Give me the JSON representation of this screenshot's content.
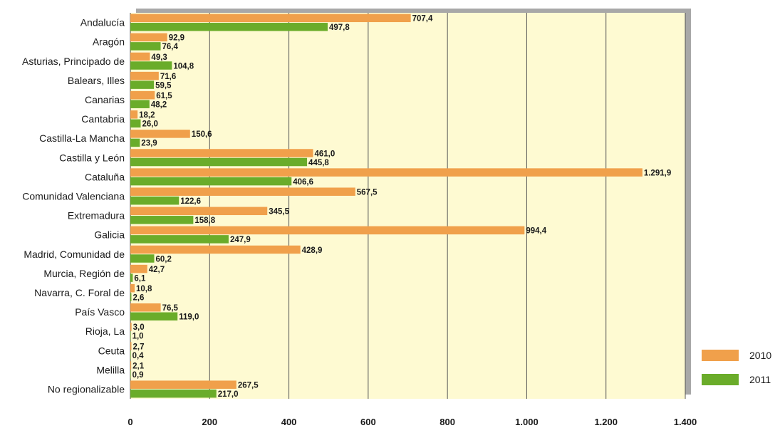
{
  "chart_data": {
    "type": "bar",
    "orientation": "horizontal",
    "categories": [
      "Andalucía",
      "Aragón",
      "Asturias, Principado de",
      "Balears, Illes",
      "Canarias",
      "Cantabria",
      "Castilla-La Mancha",
      "Castilla y León",
      "Cataluña",
      "Comunidad Valenciana",
      "Extremadura",
      "Galicia",
      "Madrid, Comunidad de",
      "Murcia, Región de",
      "Navarra, C. Foral de",
      "País Vasco",
      "Rioja, La",
      "Ceuta",
      "Melilla",
      "No regionalizable"
    ],
    "series": [
      {
        "name": "2010",
        "color": "#f0a04b",
        "values": [
          707.4,
          92.9,
          49.3,
          71.6,
          61.5,
          18.2,
          150.6,
          461.0,
          1291.9,
          567.5,
          345.5,
          994.4,
          428.9,
          42.7,
          10.8,
          76.5,
          3.0,
          2.7,
          2.1,
          267.5
        ],
        "labels": [
          "707,4",
          "92,9",
          "49,3",
          "71,6",
          "61,5",
          "18,2",
          "150,6",
          "461,0",
          "1.291,9",
          "567,5",
          "345,5",
          "994,4",
          "428,9",
          "42,7",
          "10,8",
          "76,5",
          "3,0",
          "2,7",
          "2,1",
          "267,5"
        ]
      },
      {
        "name": "2011",
        "color": "#6aac2a",
        "values": [
          497.8,
          76.4,
          104.8,
          59.5,
          48.2,
          26.0,
          23.9,
          445.8,
          406.6,
          122.6,
          158.8,
          247.9,
          60.2,
          6.1,
          2.6,
          119.0,
          1.0,
          0.4,
          0.9,
          217.0
        ],
        "labels": [
          "497,8",
          "76,4",
          "104,8",
          "59,5",
          "48,2",
          "26,0",
          "23,9",
          "445,8",
          "406,6",
          "122,6",
          "158,8",
          "247,9",
          "60,2",
          "6,1",
          "2,6",
          "119,0",
          "1,0",
          "0,4",
          "0,9",
          "217,0"
        ]
      }
    ],
    "xlim": [
      0,
      1400
    ],
    "xticks": [
      0,
      200,
      400,
      600,
      800,
      1000,
      1200,
      1400
    ],
    "xtick_labels": [
      "0",
      "200",
      "400",
      "600",
      "800",
      "1.000",
      "1.200",
      "1.400"
    ],
    "grid": true,
    "legend_position": "bottom-right",
    "plot_background": "#fefad2",
    "frame_shadow_color": "#a8a8a8"
  }
}
